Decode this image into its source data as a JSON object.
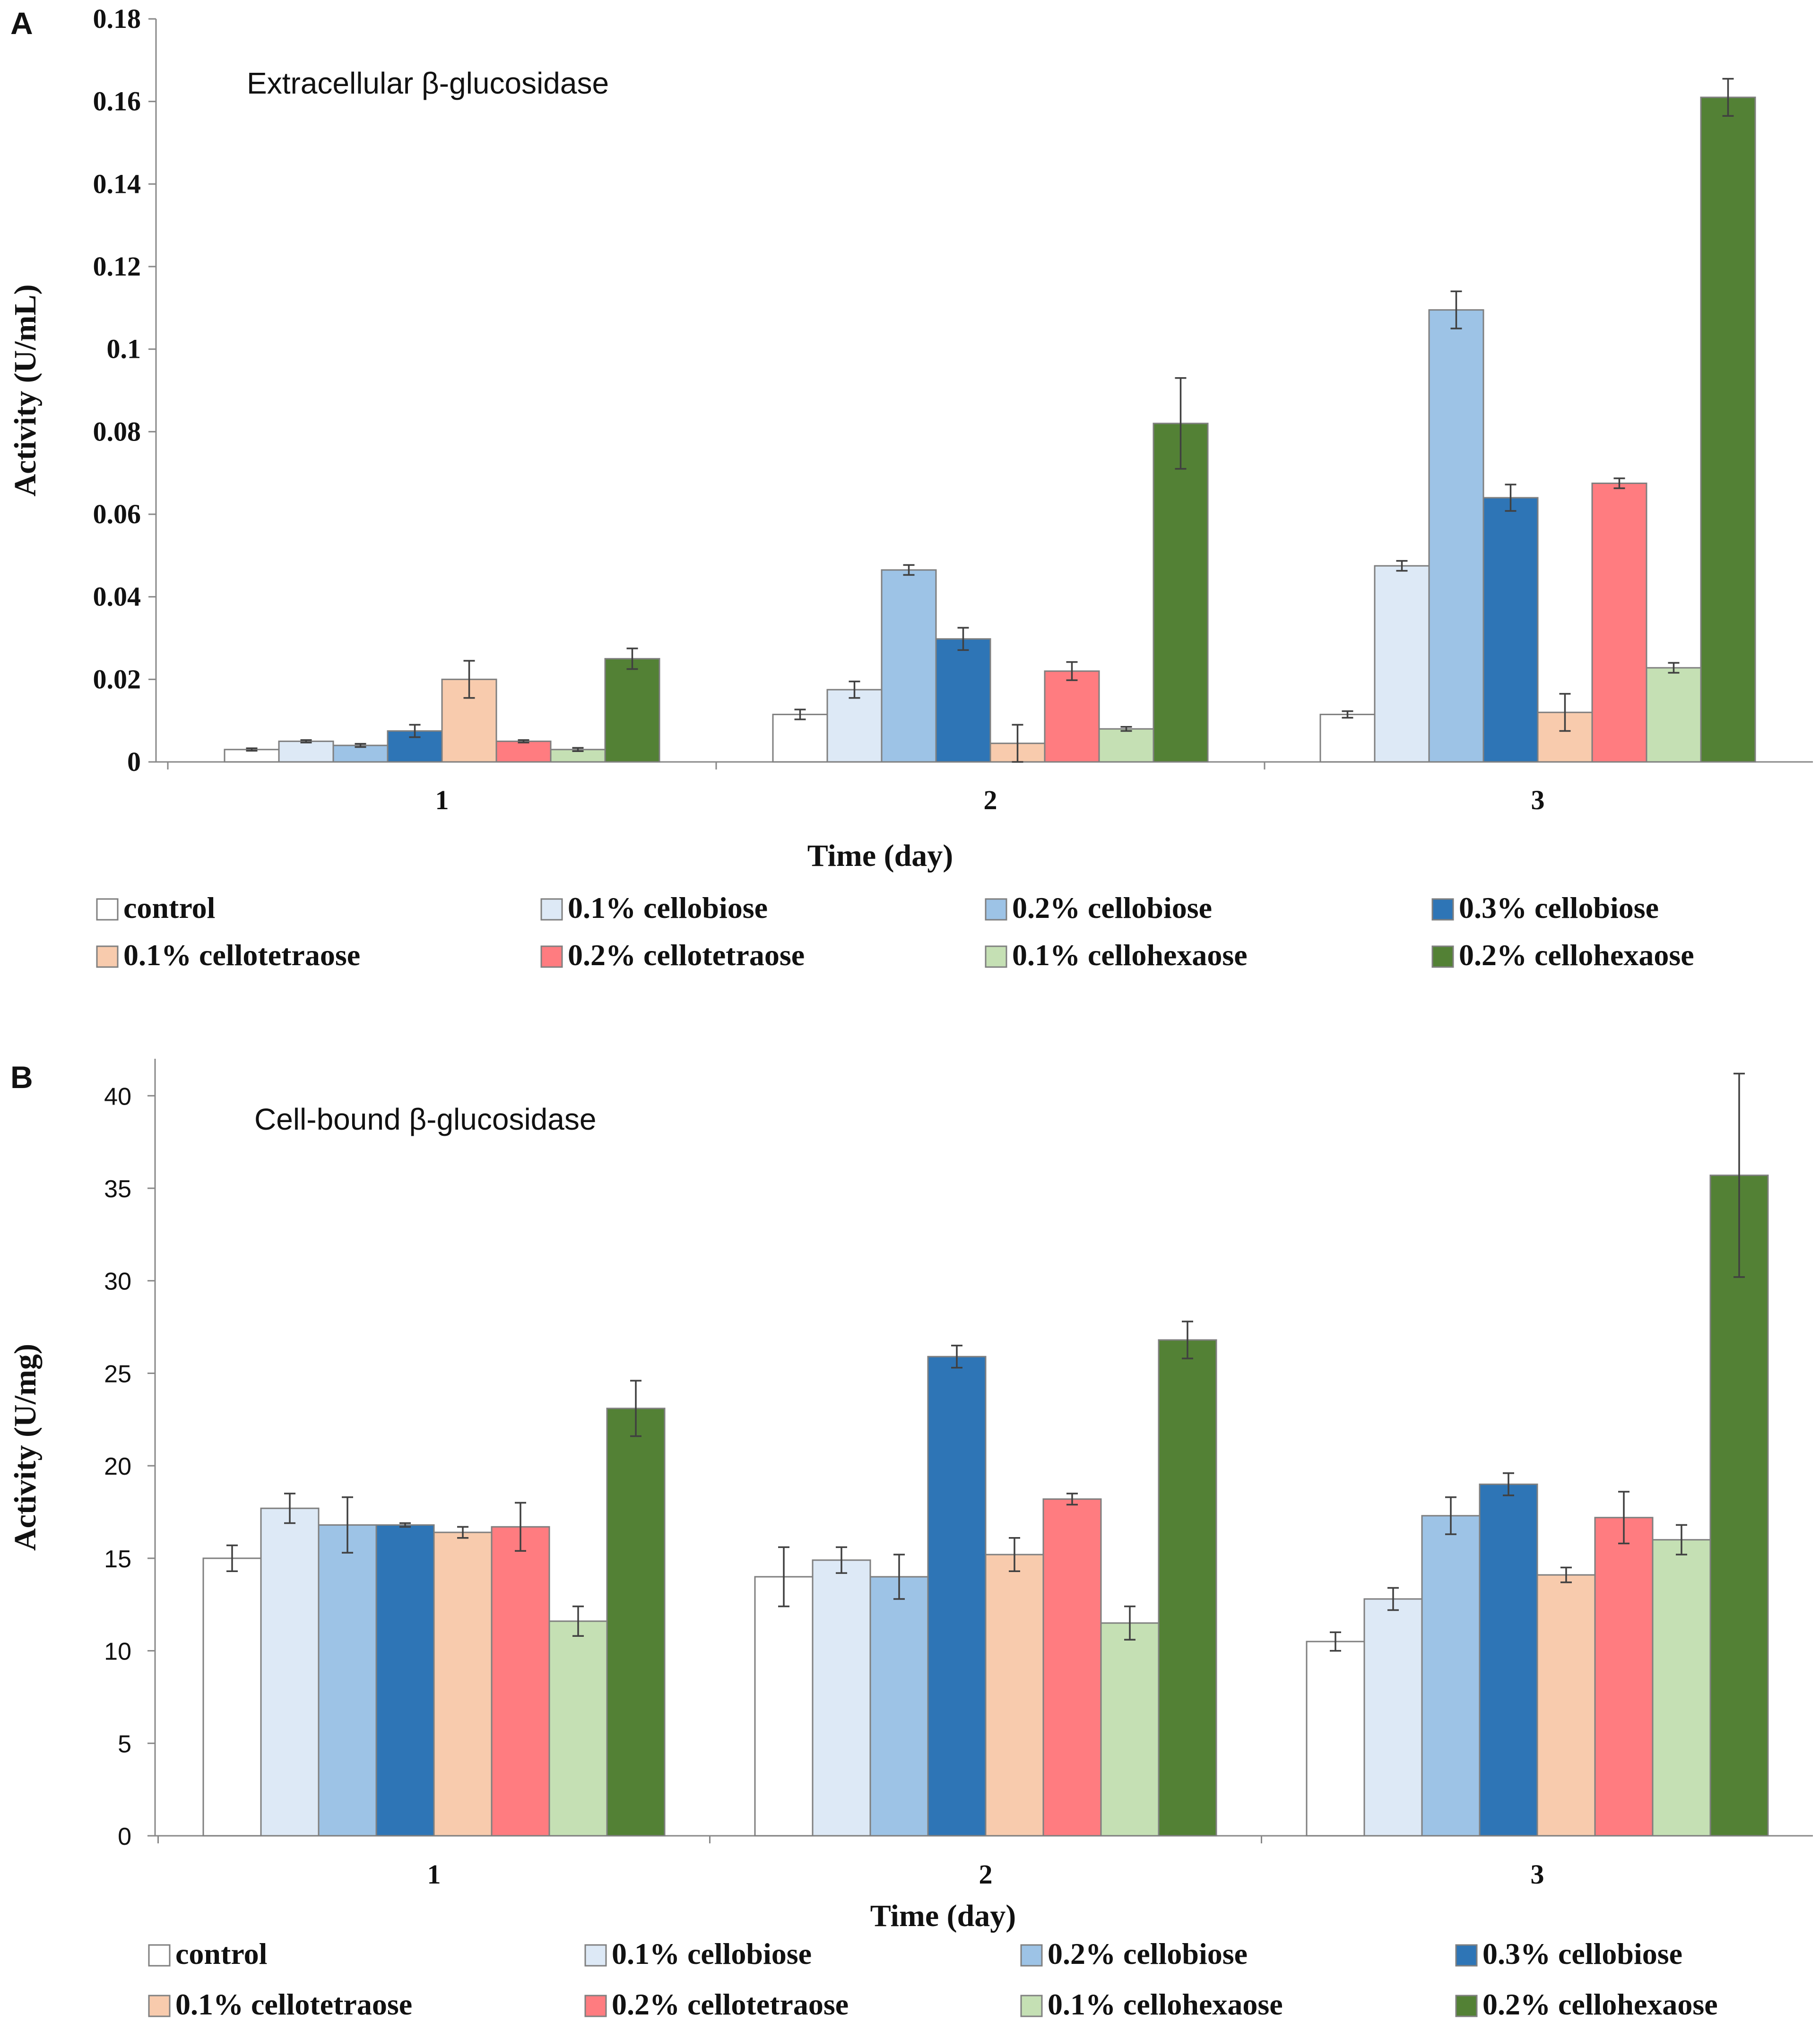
{
  "chart_data": [
    {
      "id": "A",
      "type": "bar",
      "panel_label": "A",
      "title": "Extracellular β-glucosidase",
      "xlabel": "Time (day)",
      "ylabel": "Activity (U/mL)",
      "ylim": [
        0,
        0.18
      ],
      "yticks": [
        0,
        0.02,
        0.04,
        0.06,
        0.08,
        0.1,
        0.12,
        0.14,
        0.16,
        0.18
      ],
      "ytick_labels": [
        "0",
        "0.02",
        "0.04",
        "0.06",
        "0.08",
        "0.1",
        "0.12",
        "0.14",
        "0.16",
        "0.18"
      ],
      "categories": [
        "1",
        "2",
        "3"
      ],
      "series": [
        {
          "name": "control",
          "color": "#ffffff",
          "values": [
            0.003,
            0.0115,
            0.0115
          ],
          "errors": [
            0.0003,
            0.0012,
            0.0008
          ]
        },
        {
          "name": "0.1% cellobiose",
          "color": "#dde9f6",
          "values": [
            0.005,
            0.0175,
            0.0475
          ],
          "errors": [
            0.0003,
            0.002,
            0.0012
          ]
        },
        {
          "name": "0.2% cellobiose",
          "color": "#9dc3e6",
          "values": [
            0.004,
            0.0465,
            0.1095
          ],
          "errors": [
            0.0004,
            0.0012,
            0.0045
          ]
        },
        {
          "name": "0.3% cellobiose",
          "color": "#2e75b6",
          "values": [
            0.0075,
            0.0298,
            0.064
          ],
          "errors": [
            0.0015,
            0.0027,
            0.0032
          ]
        },
        {
          "name": "0.1% cellotetraose",
          "color": "#f8cbad",
          "values": [
            0.02,
            0.0045,
            0.012
          ],
          "errors": [
            0.0045,
            0.0045,
            0.0045
          ]
        },
        {
          "name": "0.2% cellotetraose",
          "color": "#ff7c80",
          "values": [
            0.005,
            0.022,
            0.0675
          ],
          "errors": [
            0.0003,
            0.0022,
            0.0012
          ]
        },
        {
          "name": "0.1% cellohexaose",
          "color": "#c5e0b4",
          "values": [
            0.003,
            0.008,
            0.0228
          ],
          "errors": [
            0.0004,
            0.0005,
            0.0012
          ]
        },
        {
          "name": "0.2% cellohexaose",
          "color": "#538135",
          "values": [
            0.025,
            0.082,
            0.161
          ],
          "errors": [
            0.0025,
            0.011,
            0.0045
          ]
        }
      ],
      "legend": {
        "rows": [
          [
            "control",
            "0.1% cellobiose",
            "0.2% cellobiose",
            "0.3% cellobiose"
          ],
          [
            "0.1% cellotetraose",
            "0.2% cellotetraose",
            "0.1% cellohexaose",
            "0.2% cellohexaose"
          ]
        ]
      }
    },
    {
      "id": "B",
      "type": "bar",
      "panel_label": "B",
      "title": "Cell-bound β-glucosidase",
      "xlabel": "Time (day)",
      "ylabel": "Activity (U/mg)",
      "ylim": [
        0,
        42
      ],
      "yticks": [
        0,
        5,
        10,
        15,
        20,
        25,
        30,
        35,
        40
      ],
      "ytick_labels": [
        "0",
        "5",
        "10",
        "15",
        "20",
        "25",
        "30",
        "35",
        "40"
      ],
      "categories": [
        "1",
        "2",
        "3"
      ],
      "series": [
        {
          "name": "control",
          "color": "#ffffff",
          "values": [
            15.0,
            14.0,
            10.5
          ],
          "errors": [
            0.7,
            1.6,
            0.5
          ]
        },
        {
          "name": "0.1% cellobiose",
          "color": "#dde9f6",
          "values": [
            17.7,
            14.9,
            12.8
          ],
          "errors": [
            0.8,
            0.7,
            0.6
          ]
        },
        {
          "name": "0.2% cellobiose",
          "color": "#9dc3e6",
          "values": [
            16.8,
            14.0,
            17.3
          ],
          "errors": [
            1.5,
            1.2,
            1.0
          ]
        },
        {
          "name": "0.3%  cellobiose",
          "color": "#2e75b6",
          "values": [
            16.8,
            25.9,
            19.0
          ],
          "errors": [
            0.1,
            0.6,
            0.6
          ]
        },
        {
          "name": "0.1% cellotetraose",
          "color": "#f8cbad",
          "values": [
            16.4,
            15.2,
            14.1
          ],
          "errors": [
            0.3,
            0.9,
            0.4
          ]
        },
        {
          "name": "0.2% cellotetraose",
          "color": "#ff7c80",
          "values": [
            16.7,
            18.2,
            17.2
          ],
          "errors": [
            1.3,
            0.3,
            1.4
          ]
        },
        {
          "name": "0.1% cellohexaose",
          "color": "#c5e0b4",
          "values": [
            11.6,
            11.5,
            16.0
          ],
          "errors": [
            0.8,
            0.9,
            0.8
          ]
        },
        {
          "name": "0.2% cellohexaose",
          "color": "#538135",
          "values": [
            23.1,
            26.8,
            35.7
          ],
          "errors": [
            1.5,
            1.0,
            5.5
          ]
        }
      ],
      "legend": {
        "rows": [
          [
            "control",
            "0.1% cellobiose",
            "0.2% cellobiose",
            "0.3%  cellobiose"
          ],
          [
            "0.1% cellotetraose",
            "0.2% cellotetraose",
            "0.1% cellohexaose",
            "0.2% cellohexaose"
          ]
        ]
      }
    }
  ]
}
